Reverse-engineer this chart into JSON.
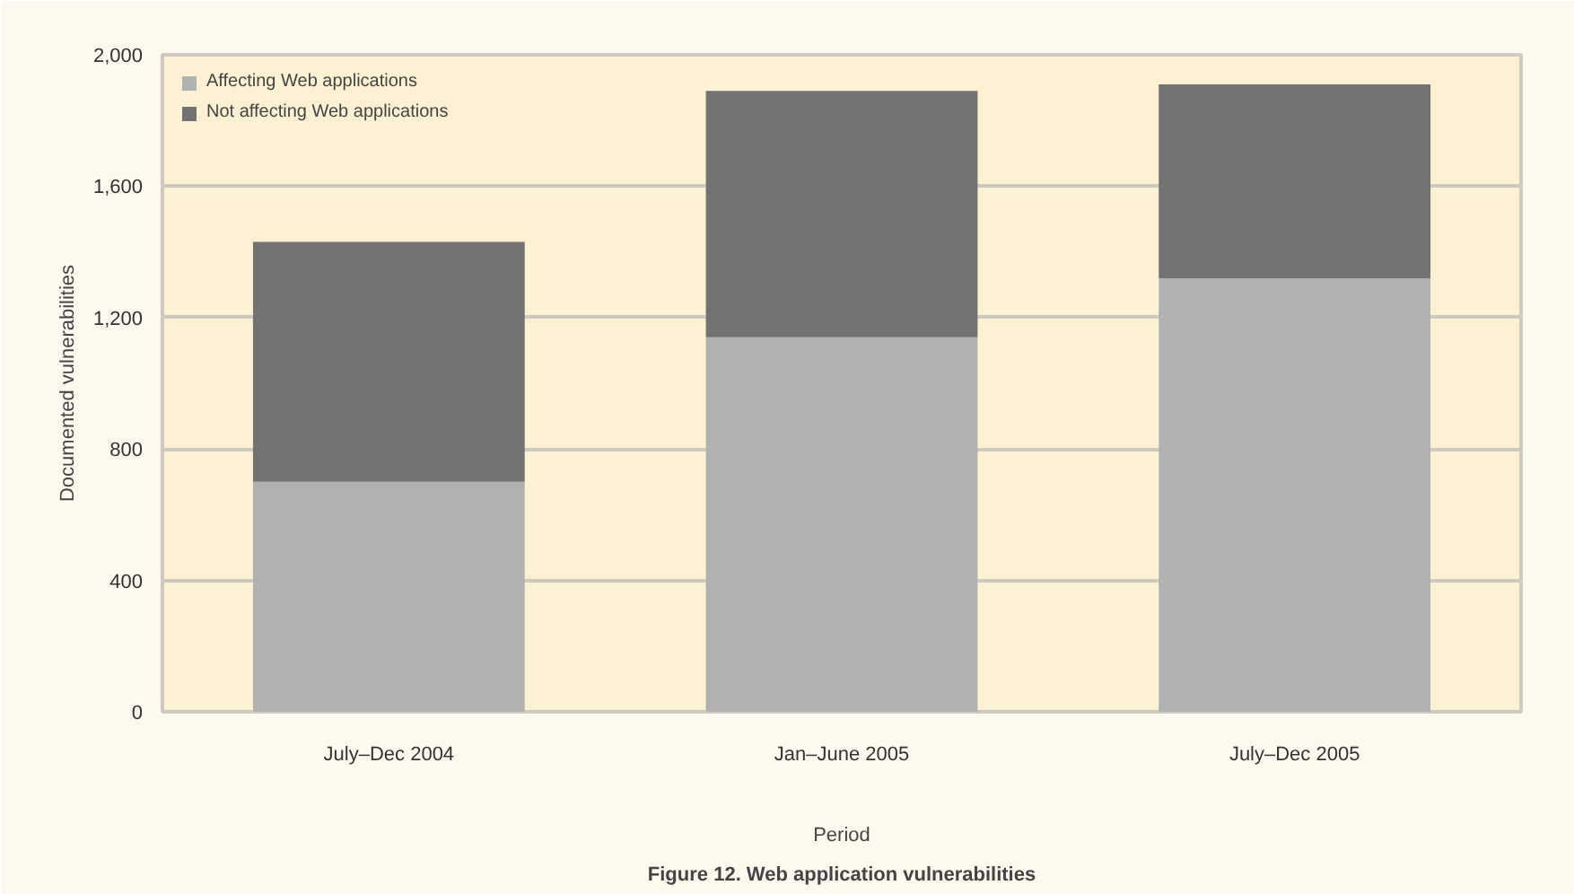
{
  "chart_data": {
    "type": "bar",
    "stacked": true,
    "title": "Figure 12. Web application vulnerabilities",
    "xlabel": "Period",
    "ylabel": "Documented vulnerabilities",
    "categories": [
      "July–Dec 2004",
      "Jan–June 2005",
      "July–Dec 2005"
    ],
    "series": [
      {
        "name": "Affecting Web applications",
        "color": "#b0b2b1",
        "values": [
          700,
          1140,
          1320
        ]
      },
      {
        "name": "Not affecting Web applications",
        "color": "#727272",
        "values": [
          730,
          750,
          590
        ]
      }
    ],
    "ylim": [
      0,
      2000
    ],
    "yticks": [
      0,
      {
        "value": 400,
        "label": "400"
      },
      {
        "value": 800,
        "label": "800"
      },
      {
        "value": 1200,
        "label": "1,200"
      },
      {
        "value": 1600,
        "label": "1,600"
      },
      {
        "value": 2000,
        "label": "2,000"
      }
    ],
    "grid": "y",
    "legend": "top left"
  }
}
